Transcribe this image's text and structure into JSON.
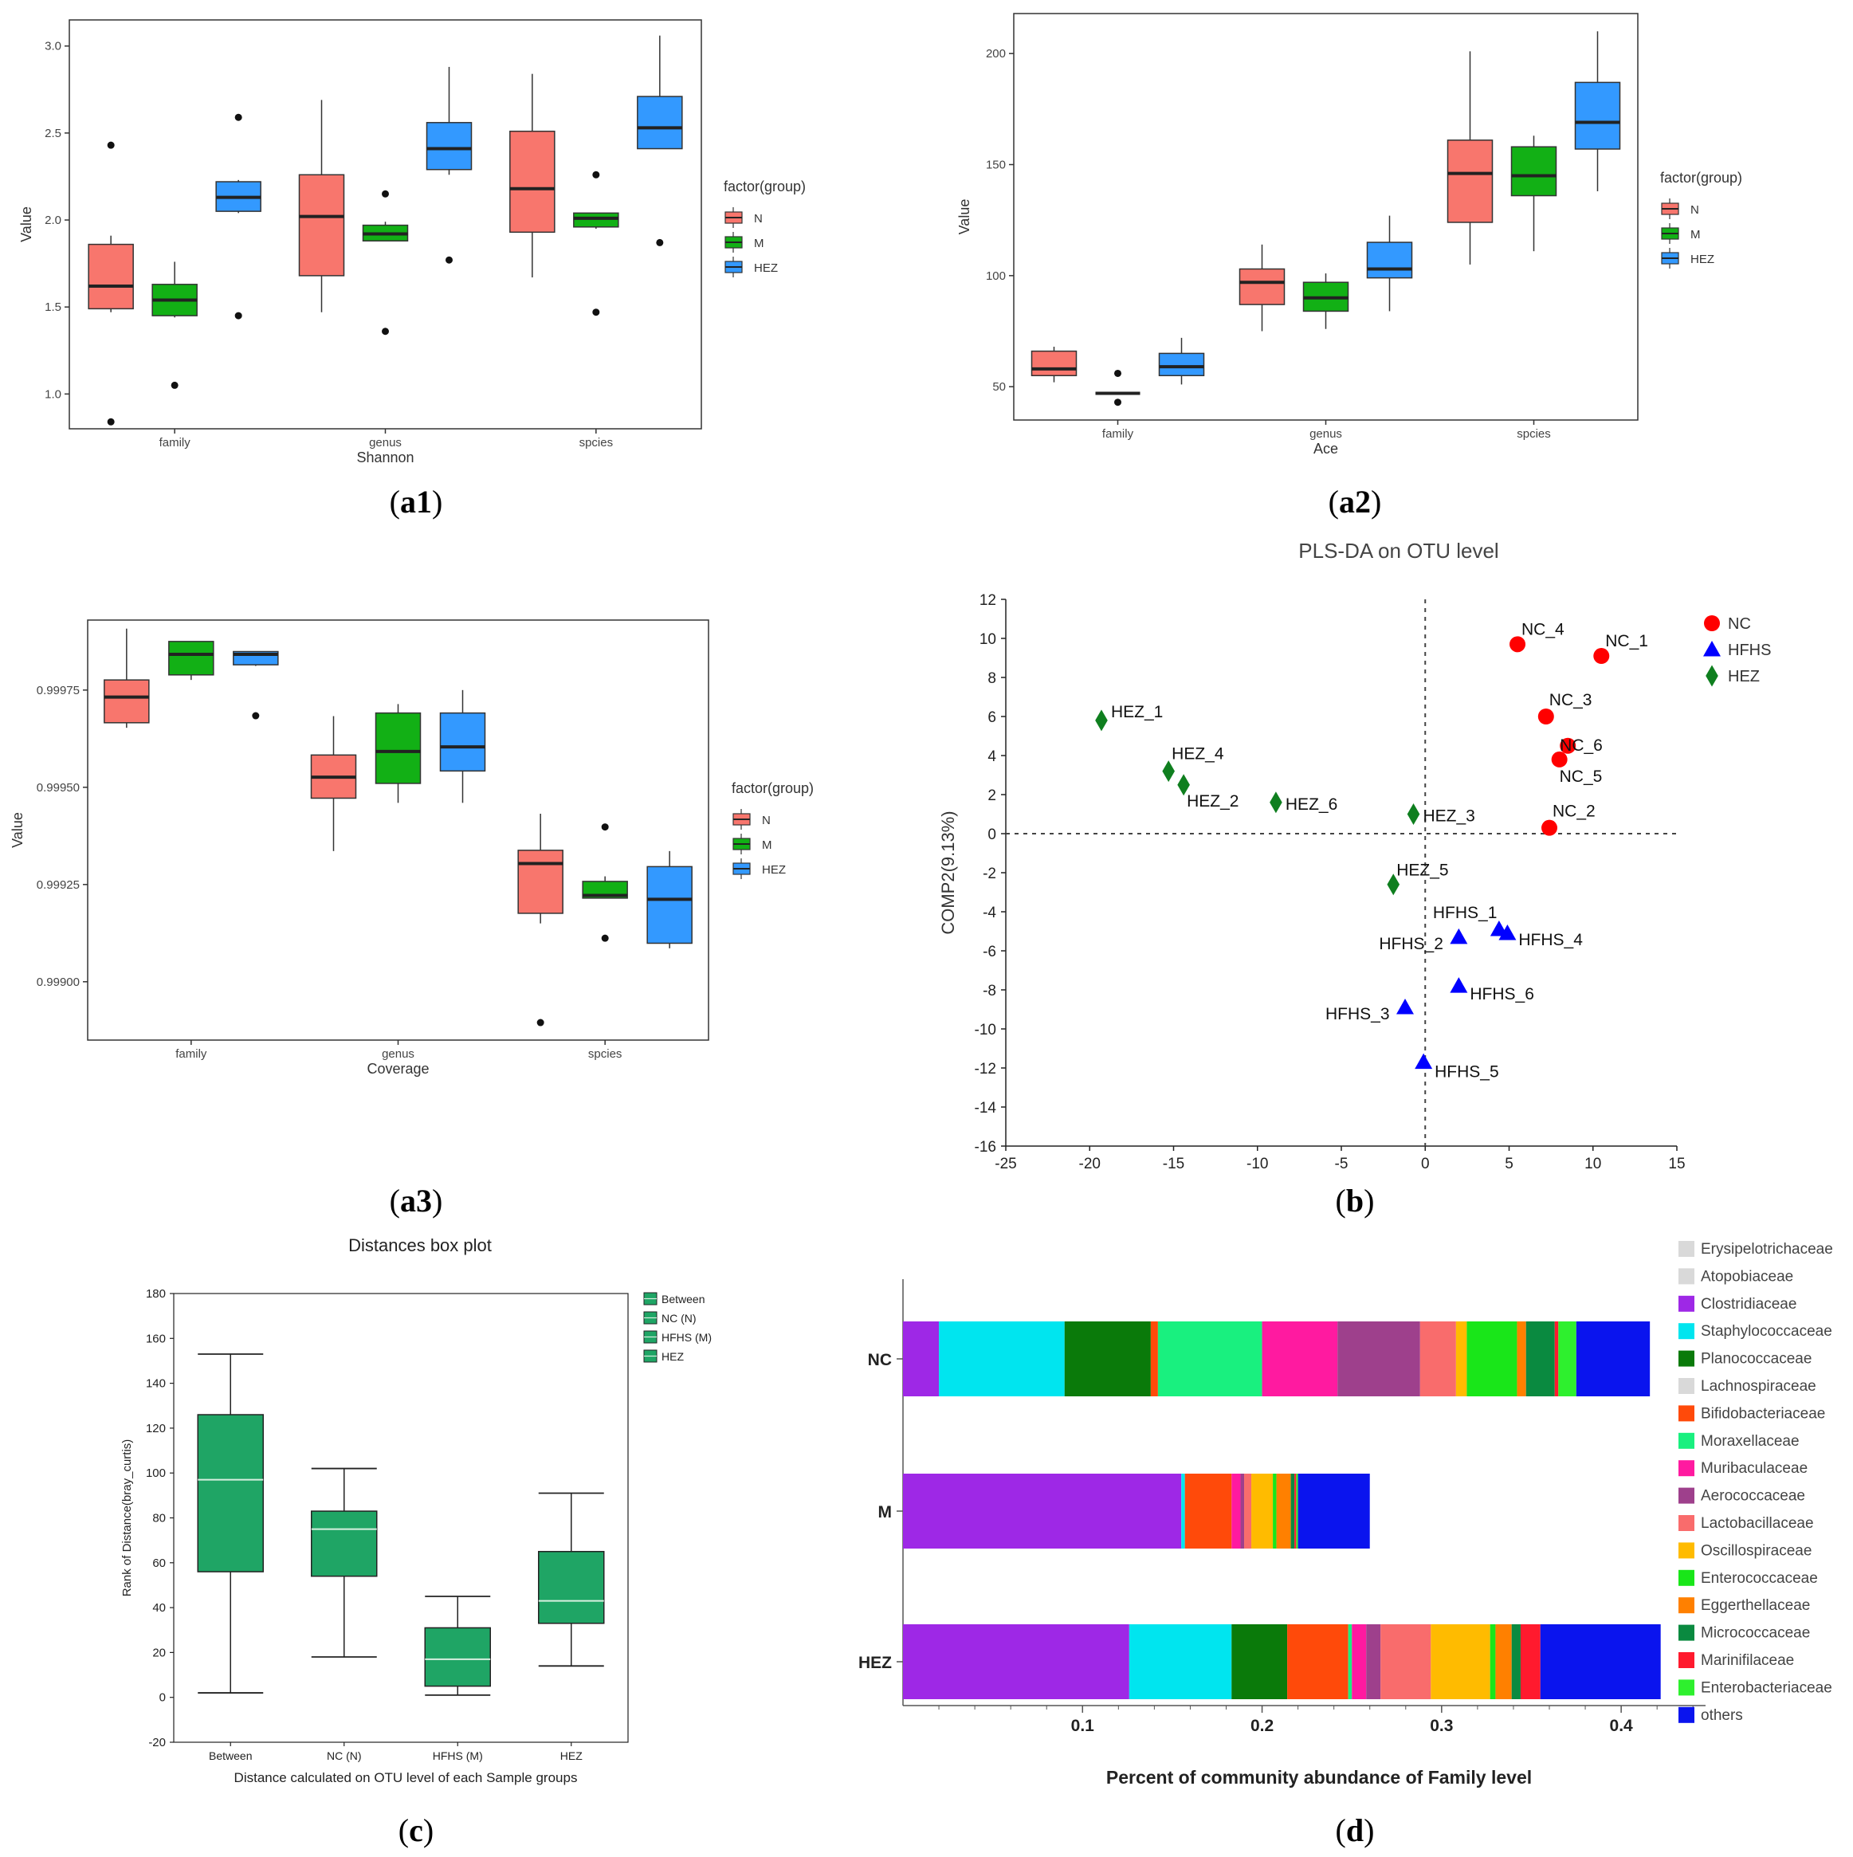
{
  "colors": {
    "N": "#f8766d",
    "M": "#12b015",
    "HEZ": "#3399ff",
    "green_box": "#1fa565"
  },
  "panel_labels": {
    "a1": {
      "pre": "(",
      "letter": "a1",
      "post": ")"
    },
    "a2": {
      "pre": "(",
      "letter": "a2",
      "post": ")"
    },
    "a3": {
      "pre": "(",
      "letter": "a3",
      "post": ")"
    },
    "b": {
      "pre": "(",
      "letter": "b",
      "post": ")"
    },
    "c": {
      "pre": "(",
      "letter": "c",
      "post": ")"
    },
    "d": {
      "pre": "(",
      "letter": "d",
      "post": ")"
    }
  },
  "chart_data": [
    {
      "id": "a1",
      "type": "boxplot",
      "title": "",
      "xlabel": "Shannon",
      "ylabel": "Value",
      "categories": [
        "family",
        "genus",
        "spcies"
      ],
      "ylim": [
        0.8,
        3.15
      ],
      "yticks": [
        1.0,
        1.5,
        2.0,
        2.5,
        3.0
      ],
      "ytick_labels": [
        "1.0",
        "1.5",
        "2.0",
        "2.5",
        "3.0"
      ],
      "legend_title": "factor(group)",
      "legend": [
        "N",
        "M",
        "HEZ"
      ],
      "series": [
        {
          "name": "N",
          "boxes": [
            {
              "min": 1.47,
              "q1": 1.49,
              "median": 1.62,
              "q3": 1.86,
              "max": 1.91,
              "outliers": [
                2.43,
                0.84
              ]
            },
            {
              "min": 1.47,
              "q1": 1.68,
              "median": 2.02,
              "q3": 2.26,
              "max": 2.69,
              "outliers": []
            },
            {
              "min": 1.67,
              "q1": 1.93,
              "median": 2.18,
              "q3": 2.51,
              "max": 2.84,
              "outliers": []
            }
          ]
        },
        {
          "name": "M",
          "boxes": [
            {
              "min": 1.44,
              "q1": 1.45,
              "median": 1.54,
              "q3": 1.63,
              "max": 1.76,
              "outliers": [
                1.05
              ]
            },
            {
              "min": 1.88,
              "q1": 1.88,
              "median": 1.92,
              "q3": 1.97,
              "max": 1.99,
              "outliers": [
                2.15,
                1.36
              ]
            },
            {
              "min": 1.95,
              "q1": 1.96,
              "median": 2.01,
              "q3": 2.04,
              "max": 2.04,
              "outliers": [
                2.26,
                1.47
              ]
            }
          ]
        },
        {
          "name": "HEZ",
          "boxes": [
            {
              "min": 2.04,
              "q1": 2.05,
              "median": 2.13,
              "q3": 2.22,
              "max": 2.23,
              "outliers": [
                2.59,
                1.45
              ]
            },
            {
              "min": 2.26,
              "q1": 2.29,
              "median": 2.41,
              "q3": 2.56,
              "max": 2.88,
              "outliers": [
                1.77
              ]
            },
            {
              "min": 2.41,
              "q1": 2.41,
              "median": 2.53,
              "q3": 2.71,
              "max": 3.06,
              "outliers": [
                1.87
              ]
            }
          ]
        }
      ]
    },
    {
      "id": "a2",
      "type": "boxplot",
      "title": "",
      "xlabel": "Ace",
      "ylabel": "Value",
      "categories": [
        "family",
        "genus",
        "spcies"
      ],
      "ylim": [
        35,
        218
      ],
      "yticks": [
        50,
        100,
        150,
        200
      ],
      "ytick_labels": [
        "50",
        "100",
        "150",
        "200"
      ],
      "legend_title": "factor(group)",
      "legend": [
        "N",
        "M",
        "HEZ"
      ],
      "series": [
        {
          "name": "N",
          "boxes": [
            {
              "min": 52,
              "q1": 55,
              "median": 58,
              "q3": 66,
              "max": 68,
              "outliers": []
            },
            {
              "min": 75,
              "q1": 87,
              "median": 97,
              "q3": 103,
              "max": 114,
              "outliers": []
            },
            {
              "min": 105,
              "q1": 124,
              "median": 146,
              "q3": 161,
              "max": 201,
              "outliers": []
            }
          ]
        },
        {
          "name": "M",
          "boxes": [
            {
              "min": 47,
              "q1": 47,
              "median": 47,
              "q3": 47,
              "max": 47,
              "outliers": [
                56,
                43
              ]
            },
            {
              "min": 76,
              "q1": 84,
              "median": 90,
              "q3": 97,
              "max": 101,
              "outliers": []
            },
            {
              "min": 111,
              "q1": 136,
              "median": 145,
              "q3": 158,
              "max": 163,
              "outliers": []
            }
          ]
        },
        {
          "name": "HEZ",
          "boxes": [
            {
              "min": 51,
              "q1": 55,
              "median": 59,
              "q3": 65,
              "max": 72,
              "outliers": []
            },
            {
              "min": 84,
              "q1": 99,
              "median": 103,
              "q3": 115,
              "max": 127,
              "outliers": []
            },
            {
              "min": 138,
              "q1": 157,
              "median": 169,
              "q3": 187,
              "max": 210,
              "outliers": []
            }
          ]
        }
      ]
    },
    {
      "id": "a3",
      "type": "boxplot",
      "title": "",
      "xlabel": "Coverage",
      "ylabel": "Value",
      "categories": [
        "family",
        "genus",
        "spcies"
      ],
      "ylim": [
        0.99885,
        0.99993
      ],
      "yticks": [
        0.999,
        0.99925,
        0.9995,
        0.99975
      ],
      "ytick_labels": [
        "0.99900",
        "0.99925",
        "0.99950",
        "0.99975"
      ],
      "legend_title": "factor(group)",
      "legend": [
        "N",
        "M",
        "HEZ"
      ],
      "series": [
        {
          "name": "N",
          "boxes": [
            {
              "min": 0.999653,
              "q1": 0.999666,
              "median": 0.999732,
              "q3": 0.999776,
              "max": 0.999908,
              "outliers": []
            },
            {
              "min": 0.999336,
              "q1": 0.999472,
              "median": 0.999526,
              "q3": 0.999583,
              "max": 0.999683,
              "outliers": []
            },
            {
              "min": 0.99915,
              "q1": 0.999176,
              "median": 0.999304,
              "q3": 0.999338,
              "max": 0.999432,
              "outliers": [
                0.998895
              ]
            }
          ]
        },
        {
          "name": "M",
          "boxes": [
            {
              "min": 0.999776,
              "q1": 0.999789,
              "median": 0.999842,
              "q3": 0.999875,
              "max": 0.999875,
              "outliers": []
            },
            {
              "min": 0.99946,
              "q1": 0.99951,
              "median": 0.999592,
              "q3": 0.999691,
              "max": 0.999714,
              "outliers": []
            },
            {
              "min": 0.999215,
              "q1": 0.999215,
              "median": 0.999222,
              "q3": 0.999258,
              "max": 0.999271,
              "outliers": [
                0.999398,
                0.999112
              ]
            }
          ]
        },
        {
          "name": "HEZ",
          "boxes": [
            {
              "min": 0.999812,
              "q1": 0.999815,
              "median": 0.999842,
              "q3": 0.999849,
              "max": 0.999849,
              "outliers": [
                0.999684
              ]
            },
            {
              "min": 0.99946,
              "q1": 0.999542,
              "median": 0.999604,
              "q3": 0.999691,
              "max": 0.99975,
              "outliers": []
            },
            {
              "min": 0.999086,
              "q1": 0.999099,
              "median": 0.999212,
              "q3": 0.999296,
              "max": 0.999336,
              "outliers": []
            }
          ]
        }
      ]
    },
    {
      "id": "b",
      "type": "scatter",
      "title": "PLS-DA on OTU level",
      "xlabel": "",
      "ylabel": "COMP2(9.13%)",
      "xlim": [
        -25,
        15
      ],
      "ylim": [
        -16,
        12
      ],
      "xticks": [
        -25,
        -20,
        -15,
        -10,
        -5,
        0,
        5,
        10,
        15
      ],
      "yticks": [
        12,
        10,
        8,
        6,
        4,
        2,
        0,
        -2,
        -4,
        -6,
        -8,
        -10,
        -12,
        -14,
        -16
      ],
      "legend": [
        "NC",
        "HFHS",
        "HEZ"
      ],
      "series": [
        {
          "name": "NC",
          "marker": "circle",
          "color": "#ff0000",
          "points": [
            {
              "label": "NC_1",
              "x": 10.5,
              "y": 9.1
            },
            {
              "label": "NC_2",
              "x": 7.4,
              "y": 0.3
            },
            {
              "label": "NC_3",
              "x": 7.2,
              "y": 6.0
            },
            {
              "label": "NC_4",
              "x": 5.5,
              "y": 9.7
            },
            {
              "label": "NC_5",
              "x": 8.0,
              "y": 3.8
            },
            {
              "label": "NC_6",
              "x": 8.5,
              "y": 4.5
            }
          ]
        },
        {
          "name": "HFHS",
          "marker": "triangle",
          "color": "#0000ff",
          "points": [
            {
              "label": "HFHS_1",
              "x": 4.4,
              "y": -4.9
            },
            {
              "label": "HFHS_2",
              "x": 2.0,
              "y": -5.3
            },
            {
              "label": "HFHS_3",
              "x": -1.2,
              "y": -8.9
            },
            {
              "label": "HFHS_4",
              "x": 4.9,
              "y": -5.1
            },
            {
              "label": "HFHS_5",
              "x": -0.1,
              "y": -11.7
            },
            {
              "label": "HFHS_6",
              "x": 2.0,
              "y": -7.8
            }
          ]
        },
        {
          "name": "HEZ",
          "marker": "diamond",
          "color": "#0f7f1f",
          "points": [
            {
              "label": "HEZ_1",
              "x": -19.3,
              "y": 5.8
            },
            {
              "label": "HEZ_2",
              "x": -14.4,
              "y": 2.5
            },
            {
              "label": "HEZ_3",
              "x": -0.7,
              "y": 1.0
            },
            {
              "label": "HEZ_4",
              "x": -15.3,
              "y": 3.2
            },
            {
              "label": "HEZ_5",
              "x": -1.9,
              "y": -2.6
            },
            {
              "label": "HEZ_6",
              "x": -8.9,
              "y": 1.6
            }
          ]
        }
      ]
    },
    {
      "id": "c",
      "type": "boxplot",
      "title": "Distances box plot",
      "xlabel": "Distance calculated on OTU level of each Sample groups",
      "ylabel": "Rank of Distance(bray_curtis)",
      "categories": [
        "Between",
        "NC (N)",
        "HFHS (M)",
        "HEZ"
      ],
      "ylim": [
        -20,
        180
      ],
      "yticks": [
        -20,
        0,
        20,
        40,
        60,
        80,
        100,
        120,
        140,
        160,
        180
      ],
      "ytick_labels": [
        "-20",
        "0",
        "20",
        "40",
        "60",
        "80",
        "100",
        "120",
        "140",
        "160",
        "180"
      ],
      "legend": [
        "Between",
        "NC (N)",
        "HFHS (M)",
        "HEZ"
      ],
      "boxes": [
        {
          "min": 2,
          "q1": 56,
          "median": 97,
          "q3": 126,
          "max": 153
        },
        {
          "min": 18,
          "q1": 54,
          "median": 75,
          "q3": 83,
          "max": 102
        },
        {
          "min": 1,
          "q1": 5,
          "median": 17,
          "q3": 31,
          "max": 45
        },
        {
          "min": 14,
          "q1": 33,
          "median": 43,
          "q3": 65,
          "max": 91
        }
      ]
    },
    {
      "id": "d",
      "type": "bar",
      "orientation": "horizontal",
      "stacked": true,
      "title": "",
      "xlabel": "Percent of community abundance of Family level",
      "ylabel": "",
      "xlim": [
        0,
        0.447
      ],
      "xticks": [
        0.1,
        0.2,
        0.3,
        0.4
      ],
      "xtick_labels": [
        "0.1",
        "0.2",
        "0.3",
        "0.4"
      ],
      "categories": [
        "NC",
        "M",
        "HEZ"
      ],
      "legend": [
        {
          "name": "Erysipelotrichaceae",
          "color": "#d9d9d9"
        },
        {
          "name": "Atopobiaceae",
          "color": "#d9d9d9"
        },
        {
          "name": "Clostridiaceae",
          "color": "#9e28e6"
        },
        {
          "name": "Staphylococcaceae",
          "color": "#00e5ef"
        },
        {
          "name": "Planococcaceae",
          "color": "#0a7a0a"
        },
        {
          "name": "Lachnospiraceae",
          "color": "#d9d9d9"
        },
        {
          "name": "Bifidobacteriaceae",
          "color": "#ff4a0a"
        },
        {
          "name": "Moraxellaceae",
          "color": "#19f07f"
        },
        {
          "name": "Muribaculaceae",
          "color": "#ff1aa0"
        },
        {
          "name": "Aerococcaceae",
          "color": "#9e408c"
        },
        {
          "name": "Lactobacillaceae",
          "color": "#f96c6c"
        },
        {
          "name": "Oscillospiraceae",
          "color": "#ffbb00"
        },
        {
          "name": "Enterococcaceae",
          "color": "#19e619"
        },
        {
          "name": "Eggerthellaceae",
          "color": "#ff8000"
        },
        {
          "name": "Micrococcaceae",
          "color": "#0a8a40"
        },
        {
          "name": "Marinifilaceae",
          "color": "#ff1a2e"
        },
        {
          "name": "Enterobacteriaceae",
          "color": "#2ef02e"
        },
        {
          "name": "others",
          "color": "#0a14ee"
        }
      ],
      "series": [
        {
          "name": "Clostridiaceae",
          "values": [
            0.02,
            0.155,
            0.126
          ]
        },
        {
          "name": "Staphylococcaceae",
          "values": [
            0.07,
            0.002,
            0.057
          ]
        },
        {
          "name": "Planococcaceae",
          "values": [
            0.048,
            0.0,
            0.031
          ]
        },
        {
          "name": "Bifidobacteriaceae",
          "values": [
            0.004,
            0.026,
            0.034
          ]
        },
        {
          "name": "Moraxellaceae",
          "values": [
            0.058,
            0.0,
            0.002
          ]
        },
        {
          "name": "Muribaculaceae",
          "values": [
            0.042,
            0.005,
            0.008
          ]
        },
        {
          "name": "Aerococcaceae",
          "values": [
            0.046,
            0.002,
            0.008
          ]
        },
        {
          "name": "Lactobacillaceae",
          "values": [
            0.02,
            0.004,
            0.028
          ]
        },
        {
          "name": "Oscillospiraceae",
          "values": [
            0.006,
            0.012,
            0.033
          ]
        },
        {
          "name": "Enterococcaceae",
          "values": [
            0.028,
            0.002,
            0.003
          ]
        },
        {
          "name": "Eggerthellaceae",
          "values": [
            0.005,
            0.008,
            0.009
          ]
        },
        {
          "name": "Micrococcaceae",
          "values": [
            0.016,
            0.002,
            0.005
          ]
        },
        {
          "name": "Marinifilaceae",
          "values": [
            0.002,
            0.001,
            0.011
          ]
        },
        {
          "name": "Enterobacteriaceae",
          "values": [
            0.01,
            0.001,
            0.0
          ]
        },
        {
          "name": "others",
          "values": [
            0.041,
            0.04,
            0.067
          ]
        }
      ]
    }
  ]
}
